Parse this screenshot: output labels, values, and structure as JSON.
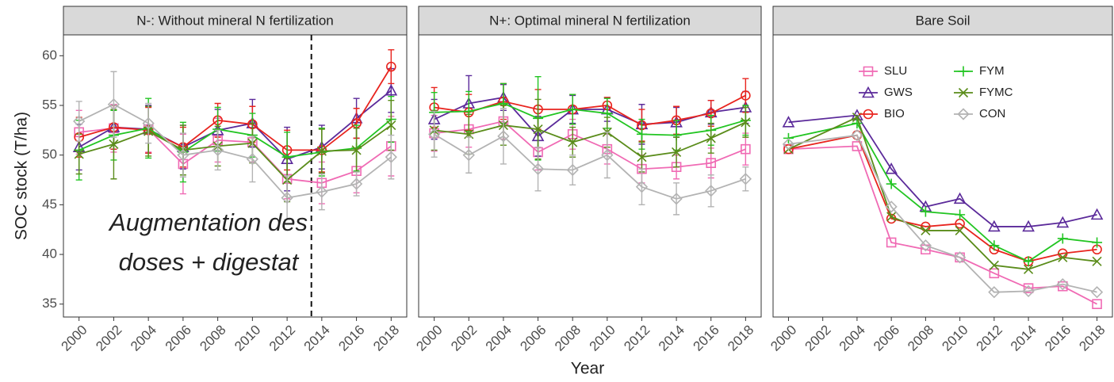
{
  "chart_data": {
    "type": "line",
    "y_label": "SOC stock (T/ha)",
    "x_label": "Year",
    "ylim": [
      33.7,
      62.1
    ],
    "yticks": [
      35,
      40,
      45,
      50,
      55,
      60
    ],
    "xlim": [
      1999.1,
      2018.9
    ],
    "xticks": [
      2000,
      2002,
      2004,
      2006,
      2008,
      2010,
      2012,
      2014,
      2016,
      2018
    ],
    "legend_panel": 2,
    "series": [
      {
        "name": "SLU",
        "color": "#f06ab4",
        "marker": "square"
      },
      {
        "name": "GWS",
        "color": "#5b2a9a",
        "marker": "triangle"
      },
      {
        "name": "BIO",
        "color": "#e8241e",
        "marker": "circle"
      },
      {
        "name": "FYM",
        "color": "#22c522",
        "marker": "plus"
      },
      {
        "name": "FYMC",
        "color": "#5a8c1a",
        "marker": "cross"
      },
      {
        "name": "CON",
        "color": "#b3b3b3",
        "marker": "diamond"
      }
    ],
    "panels": [
      {
        "title": "N-: Without mineral N fertilization",
        "x": [
          2000,
          2002,
          2004,
          2006,
          2008,
          2010,
          2012,
          2014,
          2016,
          2018
        ],
        "vline": 2013.4,
        "annotation": [
          "Augmentation des",
          "doses + digestat"
        ],
        "series": [
          {
            "values": [
              52.3,
              52.7,
              52.6,
              49.1,
              51.5,
              51.3,
              47.6,
              47.2,
              48.4,
              50.9
            ],
            "errors": [
              2.2,
              2.4,
              2.3,
              3.0,
              2.2,
              2.0,
              2.0,
              2.1,
              2.2,
              3.0
            ]
          },
          {
            "values": [
              50.8,
              52.8,
              52.6,
              50.8,
              52.5,
              53.2,
              49.6,
              50.8,
              53.7,
              56.5
            ],
            "errors": [
              2.3,
              2.2,
              2.4,
              2.2,
              2.1,
              2.4,
              3.2,
              2.2,
              2.0,
              2.2
            ]
          },
          {
            "values": [
              51.8,
              52.8,
              52.5,
              50.8,
              53.5,
              53.1,
              50.5,
              50.5,
              53.2,
              58.9
            ],
            "errors": [
              2.0,
              2.2,
              2.3,
              2.0,
              1.7,
              1.8,
              2.0,
              2.2,
              1.5,
              1.7
            ]
          },
          {
            "values": [
              50.5,
              52.0,
              52.7,
              50.3,
              52.6,
              52.0,
              49.8,
              50.3,
              50.7,
              53.6
            ],
            "errors": [
              3.0,
              2.5,
              3.0,
              3.0,
              2.2,
              2.2,
              2.5,
              2.4,
              2.3,
              2.3
            ]
          },
          {
            "values": [
              50.1,
              51.1,
              52.4,
              50.5,
              50.9,
              51.2,
              47.5,
              50.4,
              50.5,
              53.0
            ],
            "errors": [
              2.0,
              3.5,
              2.5,
              2.5,
              2.0,
              2.0,
              2.2,
              2.2,
              2.2,
              2.5
            ]
          },
          {
            "values": [
              53.4,
              55.1,
              53.2,
              50.0,
              50.5,
              49.6,
              45.7,
              46.3,
              47.1,
              49.8
            ],
            "errors": [
              2.0,
              3.3,
              2.0,
              2.2,
              2.0,
              2.3,
              2.2,
              1.8,
              1.2,
              2.2
            ]
          }
        ]
      },
      {
        "title": "N+: Optimal mineral N fertilization",
        "x": [
          2000,
          2002,
          2004,
          2006,
          2008,
          2010,
          2012,
          2014,
          2016,
          2018
        ],
        "series": [
          {
            "values": [
              52.2,
              52.6,
              53.4,
              50.3,
              52.1,
              50.6,
              48.6,
              48.8,
              49.2,
              50.6
            ],
            "errors": [
              1.8,
              1.8,
              1.8,
              1.8,
              1.5,
              1.5,
              1.4,
              1.2,
              1.5,
              1.6
            ]
          },
          {
            "values": [
              53.6,
              55.2,
              55.8,
              51.9,
              54.6,
              54.6,
              53.1,
              53.3,
              54.3,
              54.8
            ],
            "errors": [
              2.0,
              2.8,
              1.3,
              2.0,
              1.4,
              1.2,
              2.0,
              1.5,
              1.2,
              1.6
            ]
          },
          {
            "values": [
              54.8,
              54.3,
              55.4,
              54.6,
              54.6,
              55.0,
              53.0,
              53.5,
              54.2,
              56.0
            ],
            "errors": [
              2.0,
              1.8,
              1.8,
              2.0,
              1.5,
              0.8,
              1.6,
              1.4,
              1.3,
              1.7
            ]
          },
          {
            "values": [
              54.3,
              54.4,
              55.2,
              53.7,
              54.6,
              54.2,
              52.1,
              52.0,
              52.5,
              53.5
            ],
            "errors": [
              2.0,
              2.0,
              2.0,
              4.2,
              1.5,
              1.5,
              1.5,
              1.5,
              1.5,
              1.5
            ]
          },
          {
            "values": [
              52.5,
              52.1,
              53.0,
              52.6,
              51.3,
              52.3,
              49.8,
              50.3,
              51.7,
              53.3
            ],
            "errors": [
              2.0,
              2.0,
              2.0,
              3.0,
              1.5,
              1.5,
              1.5,
              1.5,
              1.5,
              1.5
            ]
          },
          {
            "values": [
              52.1,
              50.0,
              51.9,
              48.6,
              48.5,
              50.0,
              46.8,
              45.6,
              46.4,
              47.6
            ],
            "errors": [
              2.3,
              1.8,
              2.8,
              2.2,
              1.5,
              2.3,
              1.8,
              1.6,
              1.6,
              1.2
            ]
          }
        ]
      },
      {
        "title": "Bare Soil",
        "x": [
          2000,
          2004,
          2006,
          2008,
          2010,
          2012,
          2014,
          2016,
          2018
        ],
        "series": [
          {
            "values": [
              50.6,
              50.9,
              41.2,
              40.5,
              39.7,
              38.1,
              36.6,
              36.8,
              35.0
            ]
          },
          {
            "values": [
              53.3,
              54.0,
              48.6,
              44.8,
              45.6,
              42.8,
              42.8,
              43.2,
              44.0
            ]
          },
          {
            "values": [
              50.6,
              52.0,
              43.6,
              42.8,
              43.1,
              40.5,
              39.3,
              40.1,
              40.5
            ]
          },
          {
            "values": [
              51.7,
              53.2,
              47.1,
              44.3,
              44.0,
              40.9,
              39.3,
              41.6,
              41.2
            ]
          },
          {
            "values": [
              50.6,
              53.8,
              43.8,
              42.4,
              42.4,
              38.9,
              38.5,
              39.7,
              39.3
            ]
          },
          {
            "values": [
              51.1,
              52.0,
              44.8,
              40.9,
              39.7,
              36.2,
              36.3,
              37.0,
              36.2
            ]
          }
        ]
      }
    ]
  }
}
